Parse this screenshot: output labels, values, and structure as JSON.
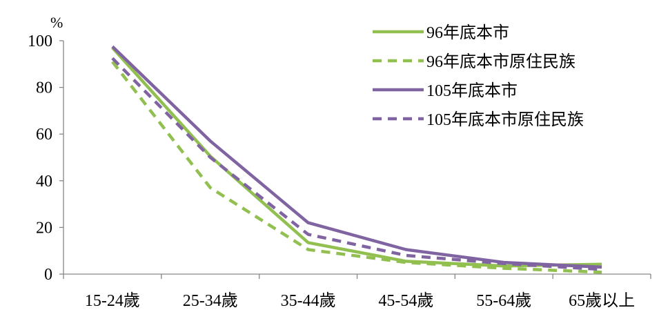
{
  "chart_data": {
    "type": "line",
    "unit_label": "%",
    "categories": [
      "15-24歲",
      "25-34歲",
      "35-44歲",
      "45-54歲",
      "55-64歲",
      "65歲以上"
    ],
    "ylim": [
      0,
      100
    ],
    "yticks": [
      0,
      20,
      40,
      60,
      80,
      100
    ],
    "grid": false,
    "legend_position": "top-right",
    "series": [
      {
        "name": "96年底本市",
        "color": "#92c050",
        "dash": "solid",
        "values": [
          97,
          50.5,
          13.5,
          5.5,
          3.5,
          4.2
        ]
      },
      {
        "name": "96年底本市原住民族",
        "color": "#92c050",
        "dash": "dashed",
        "values": [
          91,
          37,
          10.5,
          5,
          2.5,
          0.8
        ]
      },
      {
        "name": "105年底本市",
        "color": "#8064a2",
        "dash": "solid",
        "values": [
          97.5,
          57,
          22,
          10.5,
          5,
          3
        ]
      },
      {
        "name": "105年底本市原住民族",
        "color": "#8064a2",
        "dash": "dashed",
        "values": [
          92.5,
          50,
          17,
          8,
          4.5,
          2
        ]
      }
    ]
  }
}
